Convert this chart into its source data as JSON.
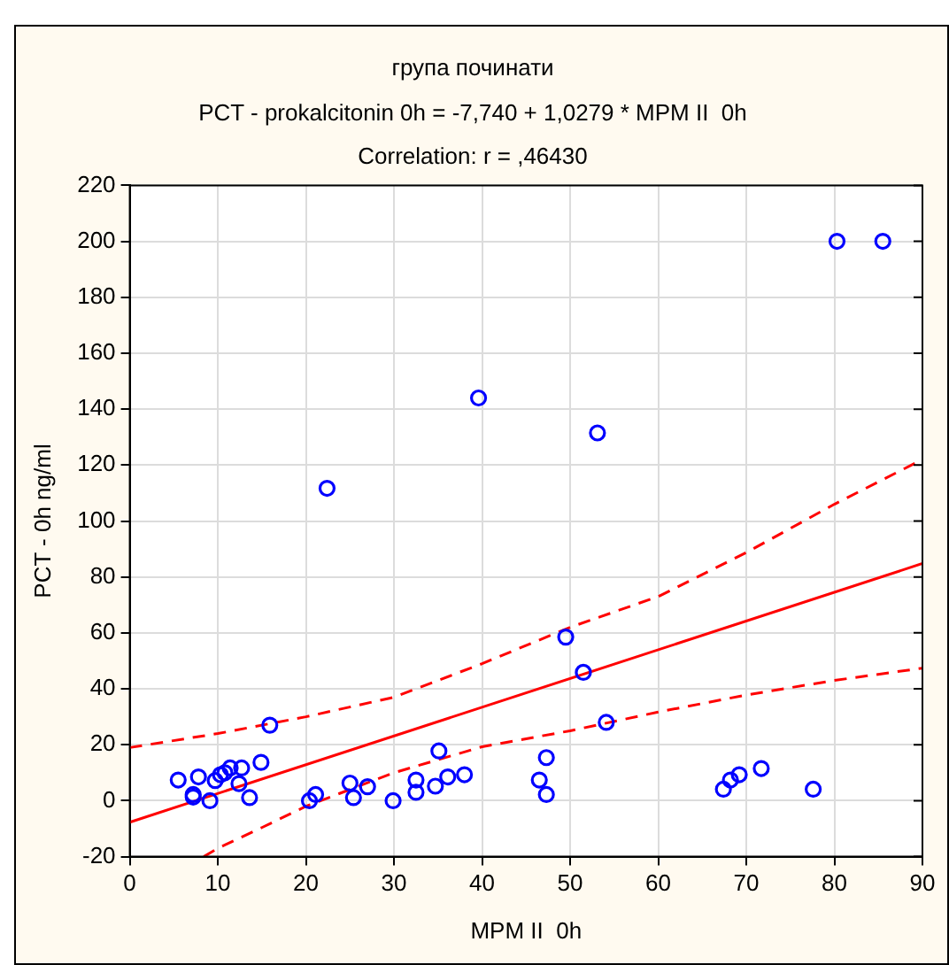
{
  "chart_data": {
    "type": "scatter",
    "title": "група починати",
    "subtitle": "PCT - prokalcitonin 0h = -7,740 + 1,0279 * MPM II  0h",
    "annotations": [
      "Correlation: r = ,46430"
    ],
    "xlabel": "MPM II  0h",
    "ylabel": "PCT - 0h ng/ml",
    "xlim": [
      0,
      90
    ],
    "xticks": [
      0,
      10,
      20,
      30,
      40,
      50,
      60,
      70,
      80,
      90
    ],
    "ylim": [
      -20,
      220
    ],
    "yticks": [
      -20,
      0,
      20,
      40,
      60,
      80,
      100,
      120,
      140,
      160,
      180,
      200,
      220
    ],
    "grid": true,
    "legend": false,
    "series": [
      {
        "type": "scatter",
        "color": "#0000ff",
        "marker": "circle",
        "x": [
          5.5,
          7.2,
          7.2,
          7.8,
          9.1,
          9.7,
          10.3,
          10.8,
          11.4,
          12.7,
          12.4,
          13.6,
          14.9,
          15.9,
          20.4,
          21.1,
          22.4,
          25,
          25.4,
          27,
          29.9,
          32.5,
          32.5,
          34.7,
          35.1,
          36.1,
          38,
          39.6,
          46.5,
          47.3,
          47.3,
          49.5,
          51.5,
          53.1,
          54.1,
          67.4,
          68.2,
          69.2,
          71.7,
          77.6,
          80.3,
          85.5
        ],
        "values": [
          7.4,
          2.2,
          1.3,
          8.5,
          0,
          7.2,
          9.3,
          10,
          11.7,
          11.7,
          6.1,
          1.1,
          13.7,
          27,
          0,
          2.2,
          111.7,
          6.3,
          1.1,
          5,
          0,
          7.4,
          3,
          5.2,
          17.8,
          8.5,
          9.3,
          144,
          7.4,
          15.4,
          2.2,
          58.5,
          45.9,
          131.5,
          28,
          4.1,
          7.4,
          9.3,
          11.5,
          4.1,
          200,
          200
        ]
      },
      {
        "type": "line",
        "color": "#ff0000",
        "marker": "none",
        "line_style": "solid",
        "x": [
          0,
          90
        ],
        "values": [
          -7.7,
          84.8
        ]
      },
      {
        "type": "line",
        "color": "#ff0000",
        "marker": "none",
        "line_style": "dashed",
        "x": [
          0,
          10,
          20,
          30,
          40,
          50,
          60,
          70,
          80,
          90
        ],
        "values": [
          19,
          24,
          30,
          37,
          49,
          62,
          73,
          88.7,
          106,
          122
        ]
      },
      {
        "type": "line",
        "color": "#ff0000",
        "marker": "none",
        "line_style": "dashed",
        "x": [
          8.4,
          10,
          15,
          20,
          30,
          40,
          50,
          60,
          70,
          80,
          90
        ],
        "values": [
          -20,
          -17,
          -9.6,
          -2,
          10,
          19.3,
          25,
          31.7,
          37.8,
          43,
          47.4
        ]
      }
    ]
  }
}
